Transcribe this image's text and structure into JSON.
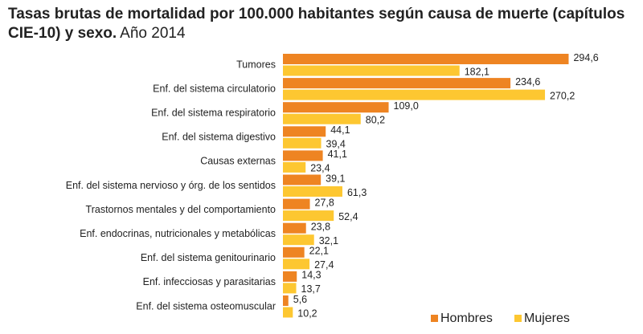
{
  "chart_data": {
    "type": "hbar",
    "title": "Tasas brutas de mortalidad por 100.000 habitantes según causa de muerte (capítulos CIE-10) y sexo.",
    "subtitle": "Año 2014",
    "categories": [
      "Tumores",
      "Enf. del sistema circulatorio",
      "Enf. del sistema respiratorio",
      "Enf. del sistema digestivo",
      "Causas externas",
      "Enf. del sistema nervioso y órg. de los sentidos",
      "Trastornos mentales y del comportamiento",
      "Enf. endocrinas, nutricionales y metabólicas",
      "Enf. del sistema genitourinario",
      "Enf. infecciosas y parasitarias",
      "Enf. del sistema osteomuscular"
    ],
    "series": [
      {
        "name": "Hombres",
        "color": "#ee8422",
        "values": [
          294.6,
          234.6,
          109.0,
          44.1,
          41.1,
          39.1,
          27.8,
          23.8,
          22.1,
          14.3,
          5.6
        ],
        "value_labels": [
          "294,6",
          "234,6",
          "109,0",
          "44,1",
          "41,1",
          "39,1",
          "27,8",
          "23,8",
          "22,1",
          "14,3",
          "5,6"
        ]
      },
      {
        "name": "Mujeres",
        "color": "#fdc731",
        "values": [
          182.1,
          270.2,
          80.2,
          39.4,
          23.4,
          61.3,
          52.4,
          32.1,
          27.4,
          13.7,
          10.2
        ],
        "value_labels": [
          "182,1",
          "270,2",
          "80,2",
          "39,4",
          "23,4",
          "61,3",
          "52,4",
          "32,1",
          "27,4",
          "13,7",
          "10,2"
        ]
      }
    ],
    "xlim": [
      0,
      300
    ],
    "legend": "bottom-right"
  }
}
